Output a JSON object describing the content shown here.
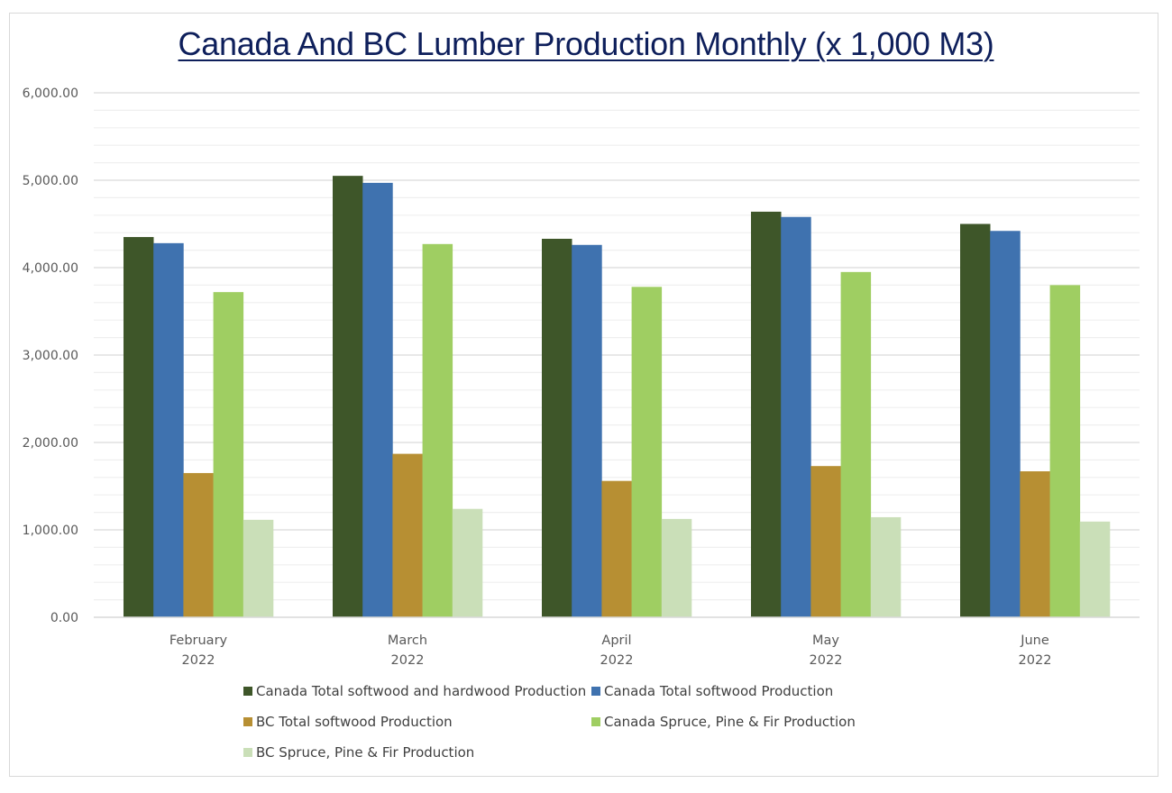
{
  "chart_data": {
    "type": "bar",
    "title": "Canada And BC Lumber Production Monthly (x 1,000 M3)",
    "xlabel": "",
    "ylabel": "",
    "ylim": [
      0,
      6000
    ],
    "y_major_step": 1000,
    "y_minor_step": 200,
    "grid": true,
    "legend_position": "bottom",
    "categories": [
      [
        "February",
        "2022"
      ],
      [
        "March",
        "2022"
      ],
      [
        "April",
        "2022"
      ],
      [
        "May",
        "2022"
      ],
      [
        "June",
        "2022"
      ]
    ],
    "y_tick_labels": [
      "0.00",
      "1,000.00",
      "2,000.00",
      "3,000.00",
      "4,000.00",
      "5,000.00",
      "6,000.00"
    ],
    "series": [
      {
        "name": "Canada Total softwood and hardwood Production",
        "color": "#3E5629",
        "values": [
          4350,
          5050,
          4330,
          4640,
          4500
        ]
      },
      {
        "name": "Canada Total softwood Production",
        "color": "#3F72AF",
        "values": [
          4280,
          4970,
          4260,
          4580,
          4420
        ]
      },
      {
        "name": "BC Total softwood Production",
        "color": "#B78F33",
        "values": [
          1650,
          1870,
          1560,
          1730,
          1670
        ]
      },
      {
        "name": "Canada Spruce, Pine & Fir Production",
        "color": "#9FCE62",
        "values": [
          3720,
          4270,
          3780,
          3950,
          3800
        ]
      },
      {
        "name": "BC Spruce, Pine & Fir Production",
        "color": "#CADFB8",
        "values": [
          1115,
          1240,
          1125,
          1145,
          1095
        ]
      }
    ]
  }
}
